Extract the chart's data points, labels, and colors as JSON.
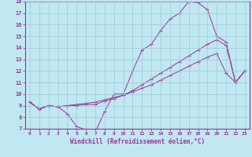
{
  "xlabel": "Windchill (Refroidissement éolien,°C)",
  "xlim": [
    -0.5,
    23.5
  ],
  "ylim": [
    7,
    18
  ],
  "xticks": [
    0,
    1,
    2,
    3,
    4,
    5,
    6,
    7,
    8,
    9,
    10,
    11,
    12,
    13,
    14,
    15,
    16,
    17,
    18,
    19,
    20,
    21,
    22,
    23
  ],
  "yticks": [
    7,
    8,
    9,
    10,
    11,
    12,
    13,
    14,
    15,
    16,
    17,
    18
  ],
  "bg_color": "#c0e8f0",
  "line_color": "#993399",
  "grid_color": "#a0c8d8",
  "lines": [
    [
      9.3,
      8.7,
      9.0,
      8.9,
      8.3,
      7.2,
      6.9,
      6.7,
      8.5,
      10.0,
      10.0,
      12.0,
      13.8,
      14.3,
      15.5,
      16.5,
      17.0,
      18.0,
      17.9,
      17.3,
      15.0,
      14.5,
      11.0,
      12.0
    ],
    [
      9.3,
      8.7,
      9.0,
      8.9,
      9.0,
      9.0,
      9.1,
      9.1,
      9.4,
      9.6,
      9.9,
      10.3,
      10.8,
      11.3,
      11.8,
      12.3,
      12.8,
      13.3,
      13.8,
      14.3,
      14.7,
      14.2,
      11.0,
      12.0
    ],
    [
      9.3,
      8.7,
      9.0,
      8.9,
      9.0,
      9.1,
      9.2,
      9.3,
      9.5,
      9.7,
      9.9,
      10.2,
      10.5,
      10.8,
      11.2,
      11.6,
      12.0,
      12.4,
      12.8,
      13.2,
      13.5,
      11.8,
      11.0,
      12.0
    ]
  ]
}
